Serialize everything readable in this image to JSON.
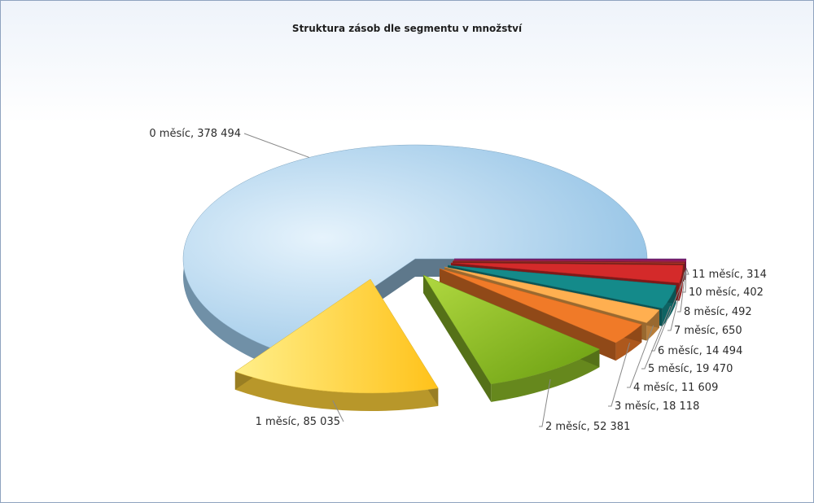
{
  "chart_data": {
    "type": "pie",
    "title": "Struktura zásob dle segmentu v množství",
    "slices": [
      {
        "label": "0 měsíc, 378 494",
        "value": 378494,
        "color": "#9cc8e8"
      },
      {
        "label": "1 měsíc, 85 035",
        "value": 85035,
        "color": "#ffd23a"
      },
      {
        "label": "2 měsíc, 52 381",
        "value": 52381,
        "color": "#8dbd28"
      },
      {
        "label": "3 měsíc, 18 118",
        "value": 18118,
        "color": "#f07a28"
      },
      {
        "label": "4 měsíc, 11 609",
        "value": 11609,
        "color": "#ffaf50"
      },
      {
        "label": "5 měsíc, 19 470",
        "value": 19470,
        "color": "#148a8a"
      },
      {
        "label": "6 měsíc, 14 494",
        "value": 14494,
        "color": "#d42a2a"
      },
      {
        "label": "7 měsíc, 650",
        "value": 650,
        "color": "#c0392b"
      },
      {
        "label": "8 měsíc, 492",
        "value": 492,
        "color": "#b02a4a"
      },
      {
        "label": "10 měsíc, 402",
        "value": 402,
        "color": "#c02080"
      },
      {
        "label": "11 měsíc, 314",
        "value": 314,
        "color": "#7a2a8a"
      }
    ],
    "legend": "none"
  }
}
